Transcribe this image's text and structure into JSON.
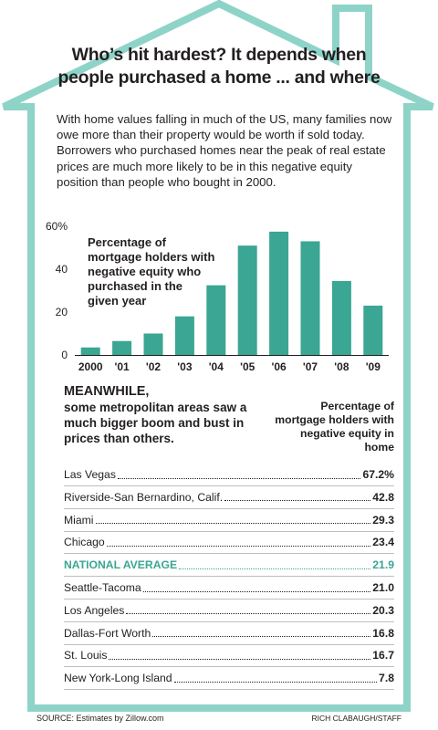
{
  "title_line1": "Who’s hit hardest? It depends when",
  "title_line2": "people purchased a home ... and where",
  "intro": "With home values falling in much of the US, many families now owe more than their property would be worth if sold today. Borrowers who purchased homes near the peak of real estate prices are much more likely to be in this negative equity position than people who bought in 2000.",
  "colors": {
    "frame": "#8ed3c8",
    "bars": "#3aa693",
    "national": "#3aa693",
    "text": "#231f20"
  },
  "chart_data": {
    "type": "bar",
    "title": "Percentage of mortgage holders with negative equity who purchased in the given year",
    "categories": [
      "2000",
      "'01",
      "'02",
      "'03",
      "'04",
      "'05",
      "'06",
      "'07",
      "'08",
      "'09"
    ],
    "values": [
      3.5,
      6.5,
      10,
      18,
      32.5,
      51,
      57.5,
      53,
      34.5,
      23
    ],
    "ylim": [
      0,
      60
    ],
    "yticks": [
      0,
      20,
      40,
      60
    ],
    "ytick_labels": [
      "0",
      "20",
      "40",
      "60%"
    ],
    "grid": false
  },
  "meanwhile": {
    "lead": "MEANWHILE,",
    "text": "some metropolitan areas saw a much bigger boom and bust in prices than others."
  },
  "table_header": "Percentage of mortgage holders with negative equity in home",
  "table_rows": [
    {
      "name": "Las Vegas",
      "value": "67.2%"
    },
    {
      "name": "Riverside-San Bernardino, Calif.",
      "value": "42.8"
    },
    {
      "name": "Miami",
      "value": "29.3"
    },
    {
      "name": "Chicago",
      "value": "23.4"
    },
    {
      "name": "NATIONAL AVERAGE",
      "value": "21.9",
      "highlight": true
    },
    {
      "name": "Seattle-Tacoma",
      "value": "21.0"
    },
    {
      "name": "Los Angeles",
      "value": "20.3"
    },
    {
      "name": "Dallas-Fort Worth",
      "value": "16.8"
    },
    {
      "name": "St. Louis",
      "value": "16.7"
    },
    {
      "name": "New York-Long Island",
      "value": "7.8"
    }
  ],
  "source": "SOURCE: Estimates by Zillow.com",
  "credit": "RICH CLABAUGH/STAFF"
}
